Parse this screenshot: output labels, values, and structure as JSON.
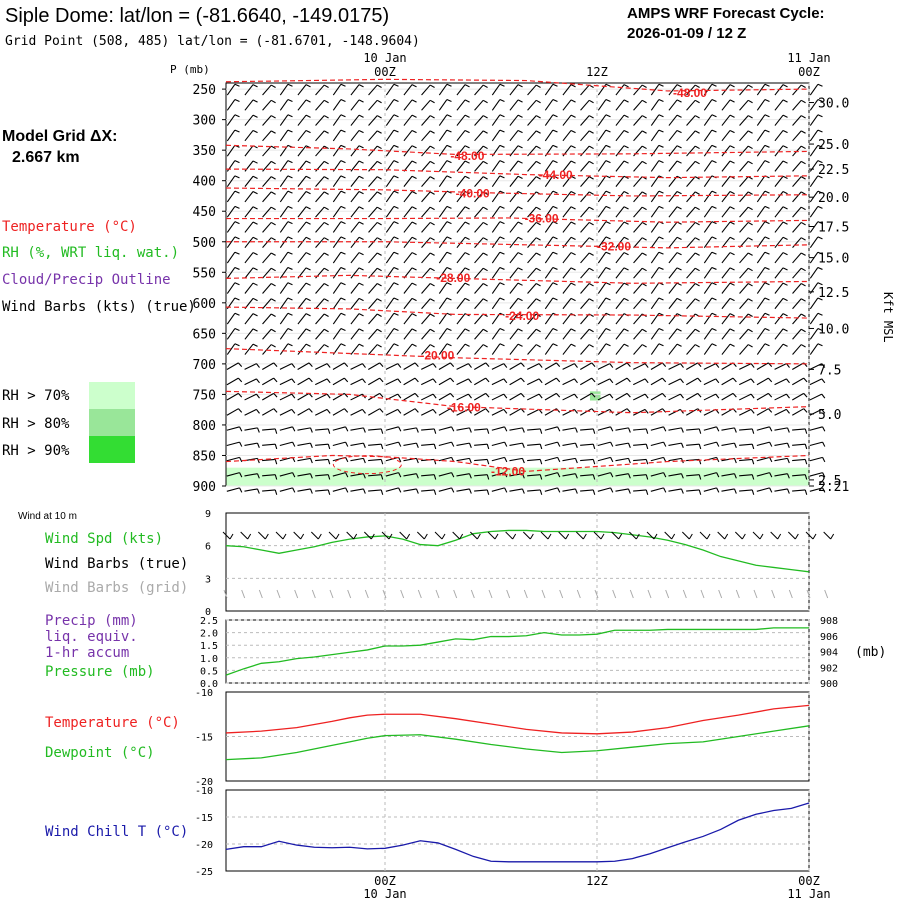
{
  "title": "Siple Dome:  lat/lon = (-81.6640, -149.0175)",
  "grid_point": "Grid Point (508, 485) lat/lon = (-81.6701, -148.9604)",
  "forecast_cycle_label": "AMPS WRF Forecast Cycle:",
  "forecast_cycle": "2026-01-09 / 12  Z",
  "model_grid_label": "Model Grid ΔX:",
  "model_grid_value": "2.667 km",
  "legend": {
    "temperature": "Temperature (°C)",
    "rh": "RH (%, WRT liq. wat.)",
    "cloud": "Cloud/Precip Outline",
    "wind": "Wind Barbs (kts) (true)",
    "rh70": "RH > 70%",
    "rh80": "RH > 80%",
    "rh90": "RH > 90%"
  },
  "colors": {
    "temperature": "#ee2222",
    "rh_text": "#22bb22",
    "cloud": "#7733aa",
    "rh70": "#ccffcc",
    "rh80": "#99e699",
    "rh90": "#33dd33",
    "wind_chill": "#1a1aaa",
    "pressure": "#22bb22",
    "grid_barbs": "#aaaaaa"
  },
  "time_axis": {
    "top_labels": [
      {
        "date": "10 Jan",
        "time": "00Z",
        "x": 12
      },
      {
        "date": "",
        "time": "12Z",
        "x": 24
      },
      {
        "date": "11 Jan",
        "time": "00Z",
        "x": 36
      }
    ],
    "bottom_labels": [
      {
        "time": "00Z",
        "date": "10 Jan",
        "x": 12
      },
      {
        "time": "12Z",
        "date": "",
        "x": 24
      },
      {
        "time": "00Z",
        "date": "11 Jan",
        "x": 36
      }
    ]
  },
  "chart_data": [
    {
      "type": "time-height cross-section",
      "ylabel": "P (mb)",
      "right_label": "Kft MSL",
      "xlim": [
        3,
        36
      ],
      "ylim": [
        900,
        240
      ],
      "pressure_ticks": [
        250,
        300,
        350,
        400,
        450,
        500,
        550,
        600,
        650,
        700,
        750,
        800,
        850,
        900
      ],
      "height_ticks": [
        {
          "p": 272,
          "label": "30.0"
        },
        {
          "p": 340,
          "label": "25.0"
        },
        {
          "p": 381,
          "label": "22.5"
        },
        {
          "p": 427,
          "label": "20.0"
        },
        {
          "p": 475,
          "label": "17.5"
        },
        {
          "p": 526,
          "label": "15.0"
        },
        {
          "p": 582,
          "label": "12.5"
        },
        {
          "p": 642,
          "label": "10.0"
        },
        {
          "p": 709,
          "label": "7.5"
        },
        {
          "p": 782,
          "label": "5.0"
        },
        {
          "p": 890,
          "label": "2.5"
        },
        {
          "p": 900,
          "label": "2.21"
        }
      ],
      "isotherm_labels": [
        {
          "label": "-48.00",
          "x": 28.3,
          "p": 255
        },
        {
          "label": "-48.00",
          "x": 15.7,
          "p": 358
        },
        {
          "label": "-44.00",
          "x": 20.7,
          "p": 389
        },
        {
          "label": "-40.00",
          "x": 16.0,
          "p": 419
        },
        {
          "label": "-36.00",
          "x": 19.9,
          "p": 460
        },
        {
          "label": "-32.00",
          "x": 24.0,
          "p": 506
        },
        {
          "label": "-28.00",
          "x": 14.9,
          "p": 558
        },
        {
          "label": "-24.00",
          "x": 18.8,
          "p": 620
        },
        {
          "label": "-20.00",
          "x": 14.0,
          "p": 685
        },
        {
          "label": "-16.00",
          "x": 15.5,
          "p": 770
        },
        {
          "label": "-12.00",
          "x": 18.0,
          "p": 875
        }
      ],
      "isotherms": [
        [
          [
            3,
            238
          ],
          [
            12,
            234
          ],
          [
            20,
            236
          ],
          [
            28,
            253
          ],
          [
            36,
            250
          ]
        ],
        [
          [
            3,
            342
          ],
          [
            10,
            348
          ],
          [
            16,
            357
          ],
          [
            26,
            356
          ],
          [
            36,
            352
          ]
        ],
        [
          [
            3,
            381
          ],
          [
            12,
            382
          ],
          [
            20,
            390
          ],
          [
            28,
            395
          ],
          [
            36,
            392
          ]
        ],
        [
          [
            3,
            412
          ],
          [
            12,
            415
          ],
          [
            18,
            420
          ],
          [
            26,
            425
          ],
          [
            36,
            423
          ]
        ],
        [
          [
            3,
            462
          ],
          [
            12,
            462
          ],
          [
            19,
            461
          ],
          [
            28,
            468
          ],
          [
            36,
            465
          ]
        ],
        [
          [
            3,
            500
          ],
          [
            12,
            500
          ],
          [
            20,
            505
          ],
          [
            28,
            510
          ],
          [
            36,
            505
          ]
        ],
        [
          [
            3,
            560
          ],
          [
            10,
            555
          ],
          [
            16,
            560
          ],
          [
            26,
            568
          ],
          [
            36,
            565
          ]
        ],
        [
          [
            3,
            607
          ],
          [
            10,
            610
          ],
          [
            16,
            619
          ],
          [
            26,
            620
          ],
          [
            36,
            625
          ]
        ],
        [
          [
            3,
            675
          ],
          [
            10,
            683
          ],
          [
            16,
            690
          ],
          [
            26,
            698
          ],
          [
            36,
            700
          ]
        ],
        [
          [
            3,
            745
          ],
          [
            10,
            750
          ],
          [
            16,
            770
          ],
          [
            26,
            780
          ],
          [
            36,
            770
          ]
        ],
        [
          [
            3,
            860
          ],
          [
            6,
            855
          ],
          [
            9,
            850
          ],
          [
            12,
            852
          ],
          [
            16,
            860
          ],
          [
            20,
            876
          ],
          [
            28,
            860
          ],
          [
            36,
            850
          ]
        ]
      ],
      "rh_patches": [
        {
          "level": "rh70",
          "x0": 3,
          "x1": 36,
          "p0": 870,
          "p1": 900
        },
        {
          "level": "rh80",
          "x0": 23.6,
          "x1": 24.2,
          "p0": 745,
          "p1": 760
        }
      ]
    },
    {
      "type": "line",
      "title": "Wind at 10 m",
      "series": [
        {
          "name": "Wind Spd (kts)",
          "color": "#22bb22",
          "x": [
            3,
            4,
            5,
            6,
            7,
            8,
            9,
            10,
            11,
            12,
            13,
            14,
            15,
            16,
            17,
            18,
            19,
            20,
            21,
            22,
            23,
            24,
            25,
            26,
            27,
            28,
            29,
            30,
            31,
            32,
            33,
            34,
            35,
            36
          ],
          "values": [
            6.0,
            5.9,
            5.6,
            5.3,
            5.6,
            5.9,
            6.3,
            6.6,
            6.8,
            6.9,
            6.6,
            6.1,
            6.0,
            6.5,
            7.1,
            7.3,
            7.4,
            7.4,
            7.3,
            7.3,
            7.3,
            7.3,
            7.2,
            7.0,
            6.8,
            6.5,
            6.1,
            5.6,
            5.0,
            4.6,
            4.2,
            4.0,
            3.8,
            3.6
          ]
        }
      ],
      "labels": {
        "speed": "Wind Spd (kts)",
        "true": "Wind Barbs (true)",
        "grid": "Wind Barbs (grid)"
      },
      "xlim": [
        3,
        36
      ],
      "ylim": [
        0,
        9
      ],
      "yticks": [
        0,
        3,
        6,
        9
      ]
    },
    {
      "type": "bar+line",
      "labels": [
        "Precip (mm)",
        "liq. equiv.",
        "1-hr accum",
        "Pressure (mb)"
      ],
      "right_unit": "(mb)",
      "left_ylim": [
        0.0,
        2.5
      ],
      "left_yticks": [
        "0.0",
        "0.5",
        "1.0",
        "1.5",
        "2.0",
        "2.5"
      ],
      "right_ylim": [
        900,
        908
      ],
      "right_yticks": [
        "900",
        "902",
        "904",
        "906",
        "908"
      ],
      "precip": [],
      "pressure": {
        "x": [
          3,
          4,
          5,
          6,
          7,
          8,
          9,
          10,
          11,
          12,
          13,
          14,
          15,
          16,
          17,
          18,
          19,
          20,
          21,
          22,
          23,
          24,
          25,
          26,
          27,
          28,
          29,
          30,
          31,
          32,
          33,
          34,
          35,
          36
        ],
        "values": [
          901.0,
          901.8,
          902.5,
          902.7,
          903.1,
          903.3,
          903.6,
          903.9,
          904.2,
          904.7,
          904.7,
          904.8,
          905.2,
          905.6,
          905.5,
          905.9,
          905.9,
          906.0,
          906.4,
          906.1,
          906.1,
          906.2,
          906.7,
          906.7,
          906.7,
          906.8,
          906.8,
          906.8,
          906.8,
          906.8,
          906.8,
          907.0,
          907.0,
          907.0
        ]
      }
    },
    {
      "type": "line",
      "labels": {
        "temp": "Temperature (°C)",
        "dew": "Dewpoint (°C)"
      },
      "ylim": [
        -20,
        -10
      ],
      "yticks": [
        "-10",
        "-15",
        "-20"
      ],
      "series": [
        {
          "name": "Temperature (°C)",
          "color": "#ee2222",
          "x": [
            3,
            5,
            7,
            9,
            10,
            11,
            12,
            14,
            16,
            18,
            20,
            22,
            24,
            26,
            28,
            30,
            32,
            34,
            36
          ],
          "values": [
            -14.6,
            -14.4,
            -14.0,
            -13.3,
            -12.9,
            -12.6,
            -12.5,
            -12.5,
            -13.0,
            -13.6,
            -14.2,
            -14.6,
            -14.7,
            -14.5,
            -14.0,
            -13.2,
            -12.6,
            -11.9,
            -11.5
          ]
        },
        {
          "name": "Dewpoint (°C)",
          "color": "#22bb22",
          "x": [
            3,
            5,
            7,
            9,
            10,
            11,
            12,
            14,
            16,
            18,
            20,
            22,
            24,
            26,
            28,
            30,
            32,
            34,
            36
          ],
          "values": [
            -17.6,
            -17.4,
            -16.8,
            -16.0,
            -15.6,
            -15.2,
            -14.9,
            -14.8,
            -15.3,
            -15.9,
            -16.4,
            -16.8,
            -16.6,
            -16.2,
            -15.8,
            -15.6,
            -15.0,
            -14.4,
            -13.8
          ]
        }
      ]
    },
    {
      "type": "line",
      "labels": {
        "windchill": "Wind Chill T (°C)"
      },
      "ylim": [
        -25,
        -10
      ],
      "yticks": [
        "-10",
        "-15",
        "-20",
        "-25"
      ],
      "series": [
        {
          "name": "Wind Chill T (°C)",
          "color": "#1a1aaa",
          "x": [
            3,
            4,
            5,
            6,
            7,
            8,
            9,
            10,
            11,
            12,
            13,
            14,
            15,
            16,
            17,
            18,
            19,
            20,
            21,
            22,
            23,
            24,
            25,
            26,
            27,
            28,
            29,
            30,
            31,
            32,
            33,
            34,
            35,
            36
          ],
          "values": [
            -21.0,
            -20.5,
            -20.5,
            -19.5,
            -20.2,
            -20.6,
            -20.7,
            -20.6,
            -20.9,
            -20.8,
            -20.2,
            -19.4,
            -19.8,
            -21.0,
            -22.3,
            -23.2,
            -23.3,
            -23.3,
            -23.3,
            -23.3,
            -23.3,
            -23.3,
            -23.2,
            -22.7,
            -21.8,
            -20.7,
            -19.6,
            -18.6,
            -17.3,
            -15.6,
            -14.5,
            -13.8,
            -13.4,
            -12.4
          ]
        }
      ]
    }
  ]
}
